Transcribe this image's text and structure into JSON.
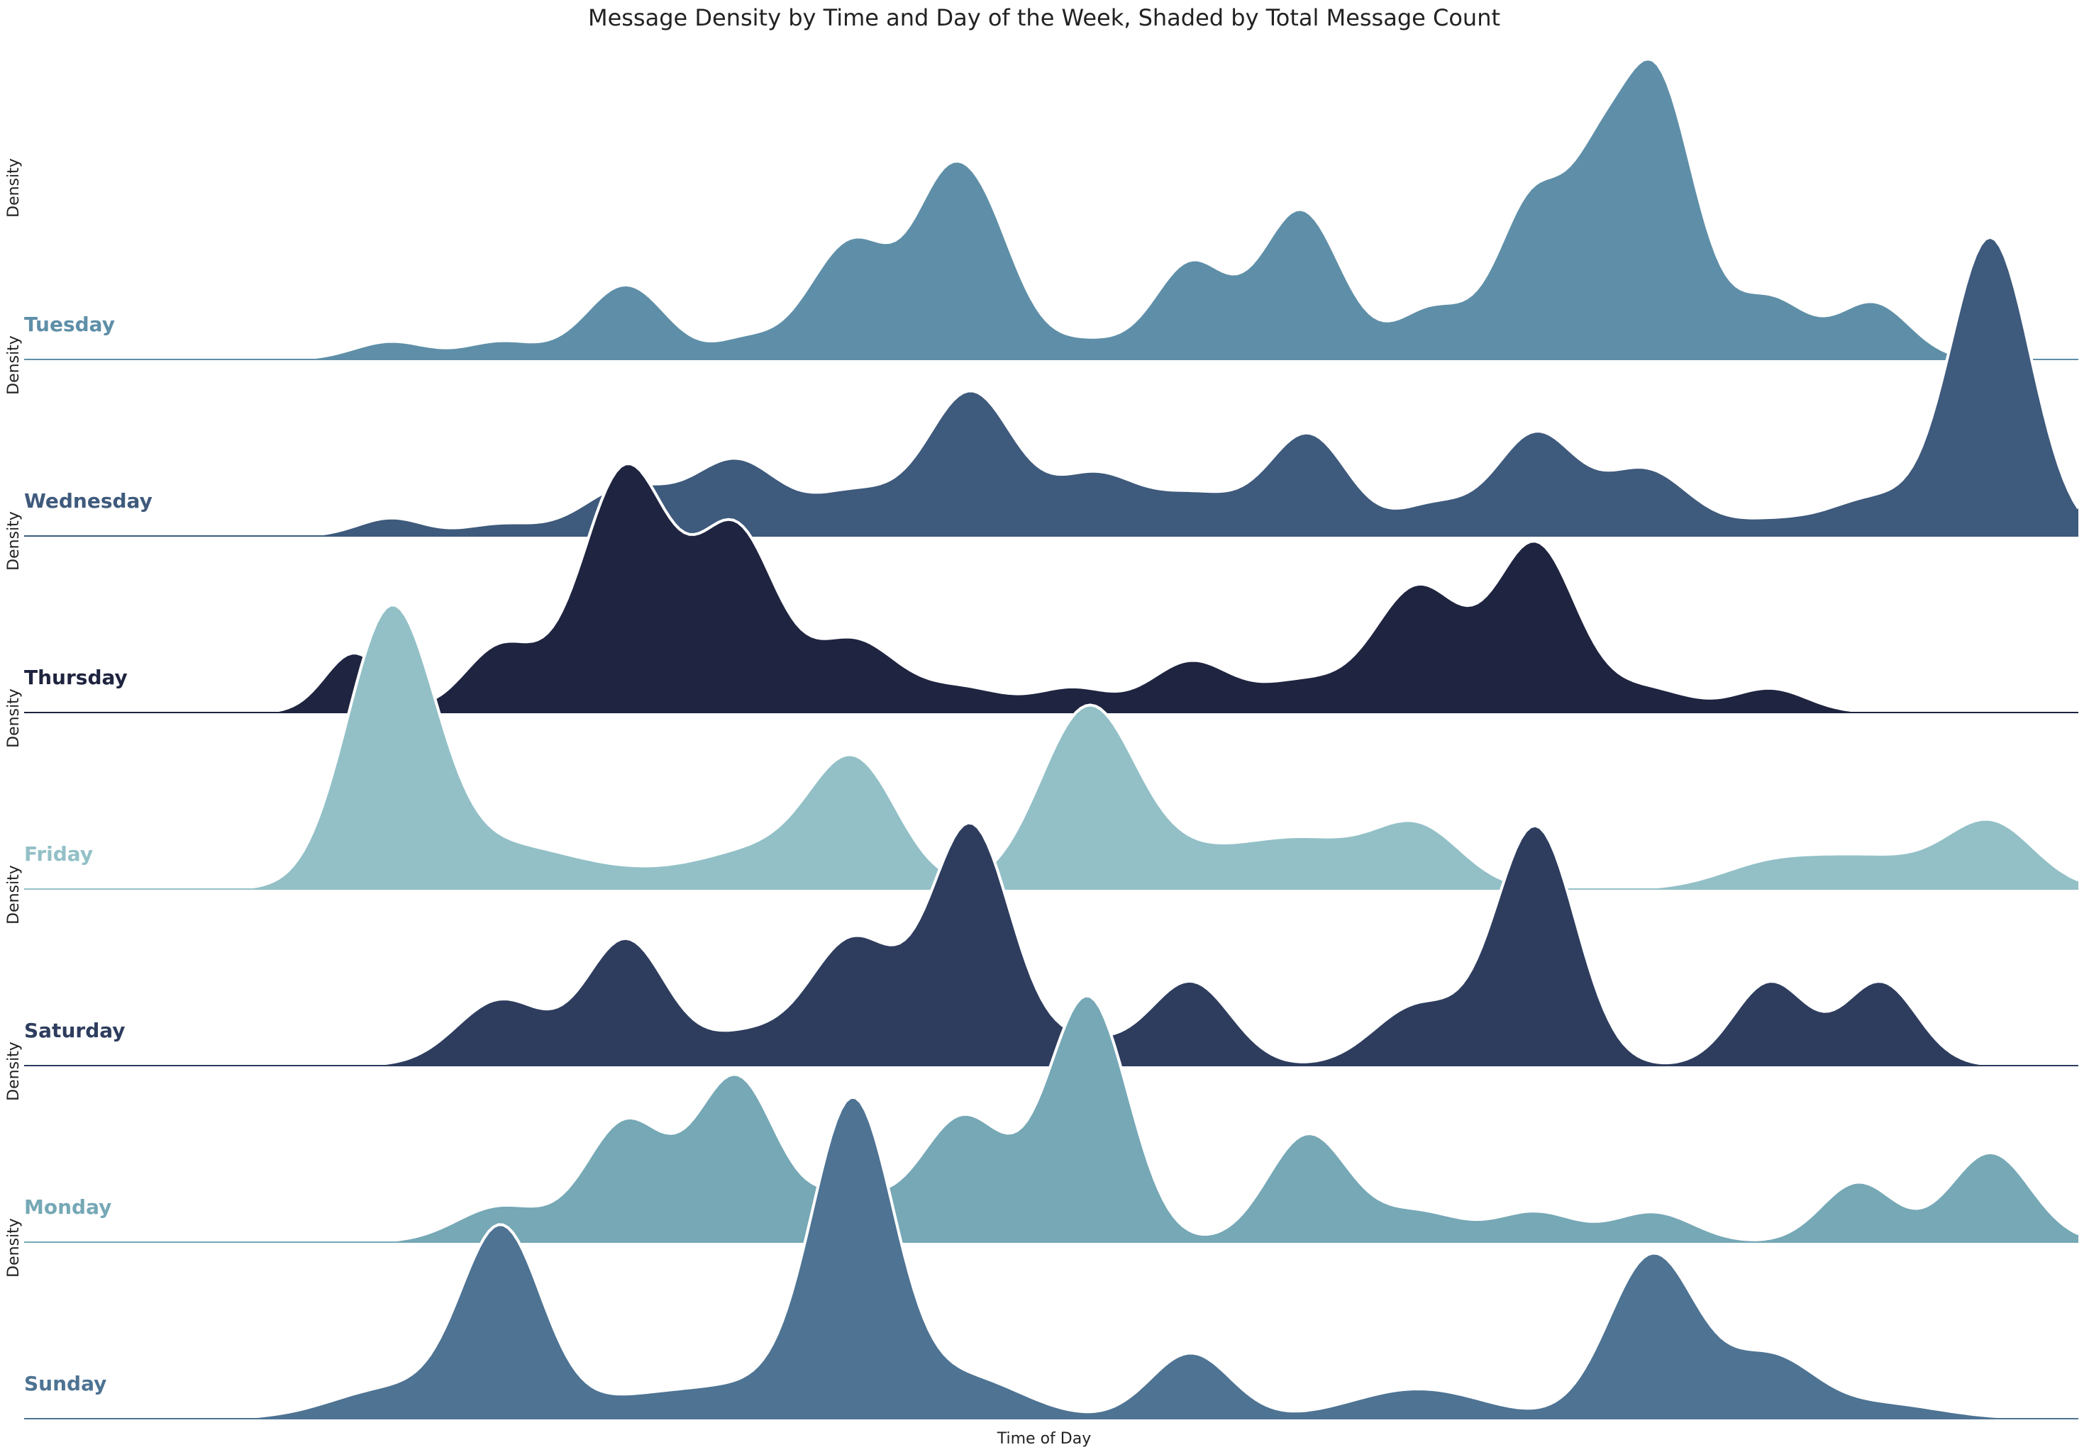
{
  "chart_data": {
    "type": "area",
    "subtype": "ridgeline-density",
    "title": "Message Density by Time and Day of the Week, Shaded by Total Message Count",
    "xlabel": "Time of Day",
    "ylabel": "Density",
    "x_ticks_visible": false,
    "y_ticks_visible": false,
    "grid": false,
    "legend": "none",
    "xlim": [
      0,
      24
    ],
    "series": [
      {
        "name": "Tuesday",
        "color": "#5f8fa8",
        "peaks": [
          [
            5,
            0.06,
            0.5
          ],
          [
            6.5,
            0.06,
            0.5
          ],
          [
            8.2,
            0.25,
            0.55
          ],
          [
            9.8,
            0.06,
            0.4
          ],
          [
            11.3,
            0.4,
            0.6
          ],
          [
            12.4,
            0.14,
            0.35
          ],
          [
            12.9,
            0.58,
            0.55
          ],
          [
            14.5,
            0.06,
            0.5
          ],
          [
            15.9,
            0.32,
            0.5
          ],
          [
            17.4,
            0.5,
            0.55
          ],
          [
            19.2,
            0.17,
            0.5
          ],
          [
            20.6,
            0.55,
            0.5
          ],
          [
            21.4,
            0.28,
            0.35
          ],
          [
            22.2,
            0.98,
            0.55
          ],
          [
            23.8,
            0.2,
            0.5
          ],
          [
            25.2,
            0.19,
            0.5
          ]
        ]
      },
      {
        "name": "Wednesday",
        "color": "#3e5a7c",
        "peaks": [
          [
            5,
            0.06,
            0.45
          ],
          [
            6.5,
            0.04,
            0.5
          ],
          [
            8.2,
            0.16,
            0.6
          ],
          [
            9.7,
            0.25,
            0.6
          ],
          [
            11.3,
            0.14,
            0.6
          ],
          [
            12.9,
            0.48,
            0.6
          ],
          [
            14.6,
            0.2,
            0.6
          ],
          [
            16,
            0.13,
            0.6
          ],
          [
            17.5,
            0.34,
            0.55
          ],
          [
            19.2,
            0.1,
            0.5
          ],
          [
            20.6,
            0.34,
            0.55
          ],
          [
            22.1,
            0.22,
            0.6
          ],
          [
            23.8,
            0.05,
            0.6
          ],
          [
            25.2,
            0.12,
            0.6
          ],
          [
            26.8,
            1.0,
            0.55
          ]
        ]
      },
      {
        "name": "Thursday",
        "color": "#1f2440",
        "peaks": [
          [
            4.5,
            0.2,
            0.4
          ],
          [
            6.5,
            0.22,
            0.5
          ],
          [
            8.2,
            0.82,
            0.6
          ],
          [
            9.7,
            0.6,
            0.55
          ],
          [
            11.3,
            0.24,
            0.6
          ],
          [
            12.8,
            0.08,
            0.6
          ],
          [
            14.3,
            0.08,
            0.5
          ],
          [
            15.9,
            0.17,
            0.55
          ],
          [
            17.4,
            0.1,
            0.6
          ],
          [
            19,
            0.42,
            0.6
          ],
          [
            20.6,
            0.56,
            0.55
          ],
          [
            22.1,
            0.08,
            0.6
          ],
          [
            23.8,
            0.08,
            0.5
          ]
        ]
      },
      {
        "name": "Friday",
        "color": "#93c0c7",
        "peaks": [
          [
            5,
            0.92,
            0.6
          ],
          [
            6.5,
            0.12,
            0.9
          ],
          [
            8.7,
            0.06,
            1.6
          ],
          [
            10,
            0.08,
            0.7
          ],
          [
            11.3,
            0.42,
            0.6
          ],
          [
            14.5,
            0.6,
            0.65
          ],
          [
            16,
            0.1,
            0.8
          ],
          [
            17.5,
            0.15,
            0.8
          ],
          [
            19,
            0.2,
            0.6
          ],
          [
            23.8,
            0.08,
            0.7
          ],
          [
            25.2,
            0.1,
            0.8
          ],
          [
            26.8,
            0.22,
            0.6
          ]
        ]
      },
      {
        "name": "Saturday",
        "color": "#2e3d5e",
        "peaks": [
          [
            6.5,
            0.22,
            0.6
          ],
          [
            8.2,
            0.42,
            0.55
          ],
          [
            9.8,
            0.1,
            0.6
          ],
          [
            11.3,
            0.42,
            0.6
          ],
          [
            12.9,
            0.8,
            0.55
          ],
          [
            14.4,
            0.08,
            0.6
          ],
          [
            15.9,
            0.28,
            0.55
          ],
          [
            19,
            0.2,
            0.6
          ],
          [
            20.6,
            0.8,
            0.55
          ],
          [
            23.8,
            0.28,
            0.5
          ],
          [
            25.3,
            0.28,
            0.5
          ]
        ]
      },
      {
        "name": "Monday",
        "color": "#76a8b6",
        "peaks": [
          [
            6.5,
            0.12,
            0.6
          ],
          [
            8.2,
            0.4,
            0.55
          ],
          [
            9.7,
            0.55,
            0.55
          ],
          [
            11.2,
            0.15,
            0.55
          ],
          [
            12.8,
            0.42,
            0.6
          ],
          [
            14.5,
            0.82,
            0.55
          ],
          [
            17.5,
            0.36,
            0.55
          ],
          [
            19,
            0.1,
            0.6
          ],
          [
            20.6,
            0.1,
            0.55
          ],
          [
            22.2,
            0.1,
            0.55
          ],
          [
            25,
            0.2,
            0.5
          ],
          [
            26.8,
            0.3,
            0.55
          ]
        ]
      },
      {
        "name": "Sunday",
        "color": "#4e7393",
        "peaks": [
          [
            5,
            0.1,
            0.8
          ],
          [
            6.5,
            0.62,
            0.55
          ],
          [
            8.7,
            0.08,
            1.2
          ],
          [
            10.4,
            0.08,
            0.9
          ],
          [
            11.3,
            1.0,
            0.55
          ],
          [
            12.8,
            0.14,
            0.8
          ],
          [
            15.9,
            0.22,
            0.55
          ],
          [
            19,
            0.1,
            0.9
          ],
          [
            22.2,
            0.55,
            0.6
          ],
          [
            23.8,
            0.2,
            0.6
          ],
          [
            25.3,
            0.05,
            0.8
          ]
        ]
      }
    ]
  }
}
